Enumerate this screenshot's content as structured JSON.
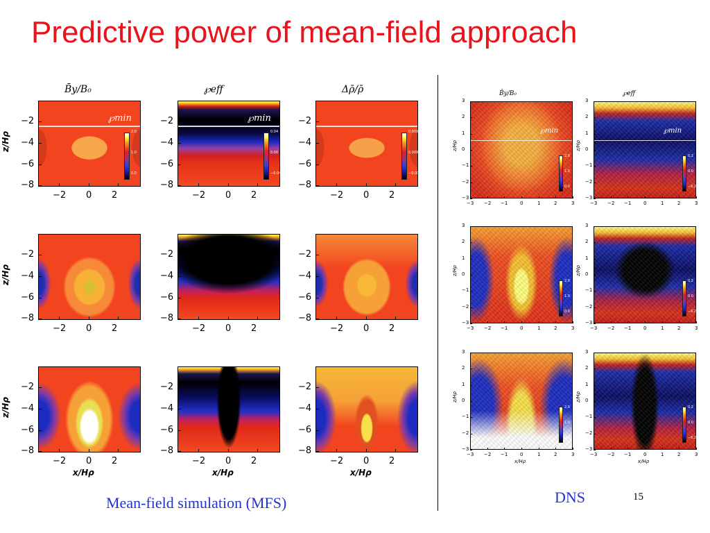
{
  "slide": {
    "title": "Predictive power of mean-field approach",
    "mfs_caption": "Mean-field simulation (MFS)",
    "dns_caption": "DNS",
    "page_number": "15"
  },
  "mfs": {
    "column_titles": [
      "B̄y/B₀",
      "℘eff",
      "Δρ̄/ρ̄"
    ],
    "x_ticks": [
      "−2",
      "0",
      "2"
    ],
    "y_ticks": [
      "−2",
      "−4",
      "−6",
      "−8"
    ],
    "y_label": "z/Hρ",
    "x_label": "x/Hρ",
    "pmin_label": "℘min",
    "colorbars": [
      [
        "2.0",
        "1.0",
        "0.0"
      ],
      [
        "0.04",
        "0.00",
        "−0.04"
      ],
      [
        "0.0001",
        "0.0000",
        "−0.0001"
      ]
    ]
  },
  "dns": {
    "column_titles": [
      "B̄y/B₀",
      "℘eff"
    ],
    "x_ticks": [
      "−3",
      "−2",
      "−1",
      "0",
      "1",
      "2",
      "3"
    ],
    "y_ticks": [
      "3",
      "2",
      "1",
      "0",
      "−1",
      "−2",
      "−3"
    ],
    "y_label": "z/Hρ",
    "x_label": "x/Hρ",
    "pmin_label": "℘min",
    "colorbars": [
      [
        "2.0",
        "1.0",
        "0.0"
      ],
      [
        "0.2",
        "0.0",
        "−0.2"
      ]
    ]
  },
  "colors": {
    "title": "#e8141b",
    "caption": "#2433c8"
  }
}
